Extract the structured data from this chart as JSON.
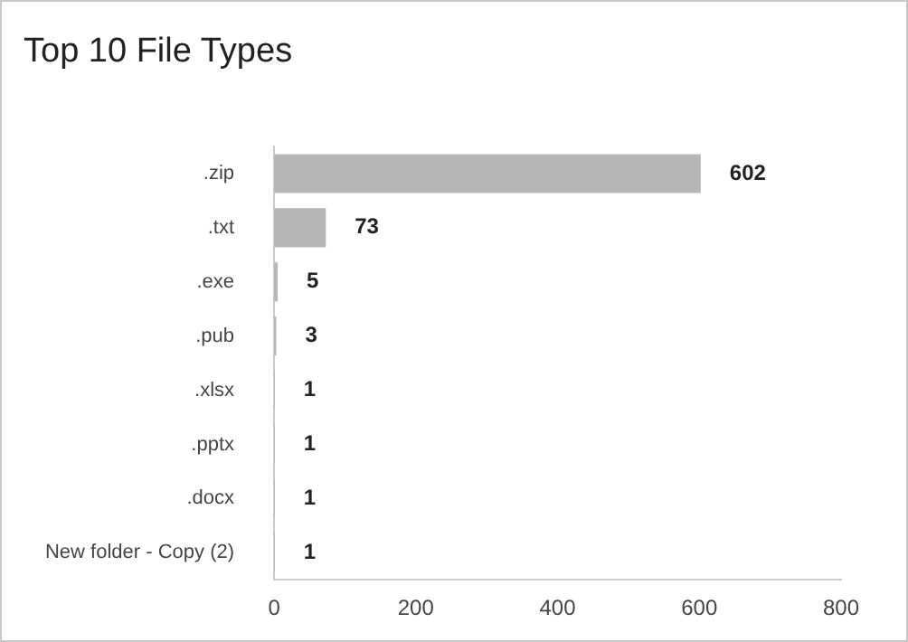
{
  "chart_data": {
    "type": "bar",
    "orientation": "horizontal",
    "title": "Top 10 File Types",
    "categories": [
      ".zip",
      ".txt",
      ".exe",
      ".pub",
      ".xlsx",
      ".pptx",
      ".docx",
      "New folder - Copy (2)"
    ],
    "values": [
      602,
      73,
      5,
      3,
      1,
      1,
      1,
      1
    ],
    "color": "#b7b7b7",
    "xlim": [
      0,
      800
    ],
    "xticks": [
      0,
      200,
      400,
      600,
      800
    ],
    "grid": false,
    "legend": false,
    "data_labels": true
  }
}
